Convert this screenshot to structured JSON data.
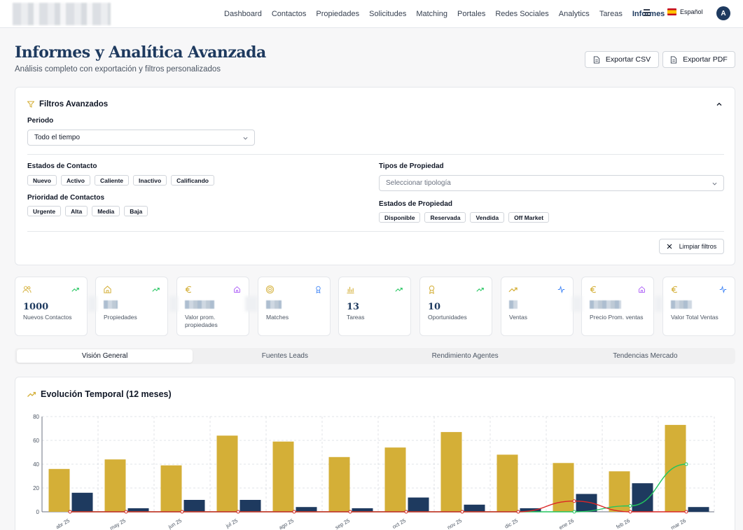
{
  "nav": {
    "items": [
      "Dashboard",
      "Contactos",
      "Propiedades",
      "Solicitudes",
      "Matching",
      "Portales",
      "Redes Sociales",
      "Analytics",
      "Tareas",
      "Informes"
    ],
    "active": "Informes",
    "language": "Español",
    "avatar_initial": "A"
  },
  "header": {
    "title": "Informes y Analítica Avanzada",
    "subtitle": "Análisis completo con exportación y filtros personalizados",
    "export_csv": "Exportar CSV",
    "export_pdf": "Exportar PDF"
  },
  "filters": {
    "title": "Filtros Avanzados",
    "period_label": "Periodo",
    "period_value": "Todo el tiempo",
    "contact_states_label": "Estados de Contacto",
    "contact_states": [
      "Nuevo",
      "Activo",
      "Caliente",
      "Inactivo",
      "Calificando"
    ],
    "contact_priority_label": "Prioridad de Contactos",
    "contact_priorities": [
      "Urgente",
      "Alta",
      "Media",
      "Baja"
    ],
    "property_types_label": "Tipos de Propiedad",
    "property_types_placeholder": "Seleccionar tipología",
    "property_states_label": "Estados de Propiedad",
    "property_states": [
      "Disponible",
      "Reservada",
      "Vendida",
      "Off Market"
    ],
    "clear_label": "Limpiar filtros"
  },
  "kpis": [
    {
      "label": "Nuevos Contactos",
      "value": "1000",
      "icon_left": "users-icon",
      "icon_right": "trending-up-icon",
      "accent": "#d4af37"
    },
    {
      "label": "Propiedades",
      "value": "",
      "icon_left": "home-icon",
      "icon_right": "trending-up-icon",
      "accent": "#d4af37"
    },
    {
      "label": "Valor prom. propiedades",
      "value": "",
      "icon_left": "euro-icon",
      "icon_right": "home-icon",
      "accent": "#d4af37"
    },
    {
      "label": "Matches",
      "value": "",
      "icon_left": "target-icon",
      "icon_right": "award-icon",
      "accent": "#d4af37"
    },
    {
      "label": "Tareas",
      "value": "13",
      "icon_left": "bar-chart-icon",
      "icon_right": "trending-up-icon",
      "accent": "#d4af37"
    },
    {
      "label": "Oportunidades",
      "value": "10",
      "icon_left": "award-icon",
      "icon_right": "trending-up-icon",
      "accent": "#d4af37"
    },
    {
      "label": "Ventas",
      "value": "",
      "icon_left": "trending-up-icon",
      "icon_right": "activity-icon",
      "accent": "#d4af37"
    },
    {
      "label": "Precio Prom. ventas",
      "value": "",
      "icon_left": "euro-icon",
      "icon_right": "home-icon",
      "accent": "#d4af37"
    },
    {
      "label": "Valor Total Ventas",
      "value": "",
      "icon_left": "euro-icon",
      "icon_right": "activity-icon",
      "accent": "#d4af37"
    }
  ],
  "tabs": [
    "Visión General",
    "Fuentes Leads",
    "Rendimiento Agentes",
    "Tendencias Mercado"
  ],
  "active_tab": "Visión General",
  "chart_section": {
    "title": "Evolución Temporal (12 meses)"
  },
  "chart_data": {
    "type": "bar",
    "title": "Evolución Temporal (12 meses)",
    "categories": [
      "abr 25",
      "may 25",
      "jun 25",
      "jul 25",
      "ago 25",
      "sep 25",
      "oct 25",
      "nov 25",
      "dic 25",
      "ene 26",
      "feb 26",
      "mar 26"
    ],
    "series": [
      {
        "type": "bar",
        "color": "#d4af37",
        "values": [
          36,
          44,
          39,
          64,
          59,
          46,
          54,
          67,
          48,
          41,
          34,
          73
        ]
      },
      {
        "type": "bar",
        "color": "#1e3a5f",
        "values": [
          16,
          3,
          10,
          10,
          4,
          3,
          12,
          6,
          3,
          15,
          24,
          4
        ]
      },
      {
        "type": "line",
        "color": "#22c55e",
        "values": [
          0,
          0,
          0,
          0,
          0,
          0,
          0,
          0,
          0,
          0,
          5,
          40
        ]
      },
      {
        "type": "line",
        "color": "#dc2626",
        "values": [
          0,
          0,
          0,
          0,
          0,
          0,
          0,
          0,
          0,
          9,
          0,
          0
        ]
      }
    ],
    "yticks": [
      0,
      20,
      40,
      60,
      80
    ],
    "ylim": [
      0,
      80
    ],
    "grid": true
  }
}
